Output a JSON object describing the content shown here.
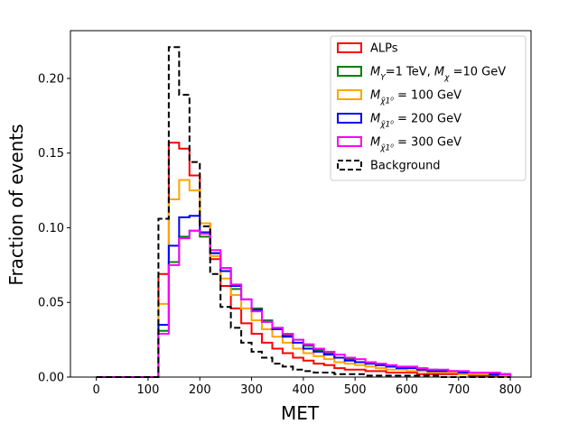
{
  "chart_data": {
    "type": "histogram-step",
    "xlabel": "MET",
    "ylabel": "Fraction of events",
    "xlim": [
      -50,
      840
    ],
    "ylim": [
      0,
      0.232
    ],
    "xticks": [
      0,
      100,
      200,
      300,
      400,
      500,
      600,
      700,
      800
    ],
    "yticks": [
      0.0,
      0.05,
      0.1,
      0.15,
      0.2
    ],
    "ytick_labels": [
      "0.00",
      "0.05",
      "0.10",
      "0.15",
      "0.20"
    ],
    "grid": false,
    "legend_position": "top-right",
    "bin_edges": [
      0,
      20,
      40,
      60,
      80,
      100,
      120,
      140,
      160,
      180,
      200,
      220,
      240,
      260,
      280,
      300,
      320,
      340,
      360,
      380,
      400,
      420,
      440,
      460,
      480,
      500,
      520,
      540,
      560,
      580,
      600,
      620,
      640,
      660,
      680,
      700,
      720,
      740,
      760,
      780,
      800
    ],
    "series": [
      {
        "name": "ALPs",
        "legend_main": "ALPs",
        "color": "#ff0000",
        "dashed": false,
        "values": [
          0,
          0,
          0,
          0,
          0,
          0,
          0.069,
          0.157,
          0.153,
          0.135,
          0.103,
          0.079,
          0.061,
          0.046,
          0.036,
          0.029,
          0.023,
          0.019,
          0.016,
          0.013,
          0.011,
          0.009,
          0.008,
          0.006,
          0.005,
          0.005,
          0.004,
          0.004,
          0.003,
          0.003,
          0.003,
          0.002,
          0.002,
          0.002,
          0.002,
          0.002,
          0.001,
          0.001,
          0.001,
          0.001
        ]
      },
      {
        "name": "M_Y=1 TeV, M_χ=10 GeV",
        "legend_main": "M",
        "legend_sub1": "Y",
        "legend_mid": "=1 TeV, M",
        "legend_sub2": "χ",
        "legend_tail": "=10 GeV",
        "color": "#008000",
        "dashed": false,
        "values": [
          0,
          0,
          0,
          0,
          0,
          0,
          0.031,
          0.077,
          0.094,
          0.098,
          0.094,
          0.083,
          0.073,
          0.059,
          0.052,
          0.046,
          0.038,
          0.033,
          0.028,
          0.025,
          0.021,
          0.018,
          0.016,
          0.013,
          0.012,
          0.01,
          0.009,
          0.008,
          0.007,
          0.006,
          0.006,
          0.005,
          0.005,
          0.004,
          0.004,
          0.003,
          0.003,
          0.003,
          0.002,
          0.002
        ]
      },
      {
        "name": "M_χ1=100 GeV",
        "legend_main": "M",
        "legend_sub1": "χ̃1⁰",
        "legend_tail": "= 100 GeV",
        "color": "#ffa500",
        "dashed": false,
        "values": [
          0,
          0,
          0,
          0,
          0,
          0,
          0.049,
          0.119,
          0.132,
          0.125,
          0.103,
          0.081,
          0.066,
          0.055,
          0.046,
          0.038,
          0.032,
          0.027,
          0.023,
          0.019,
          0.016,
          0.014,
          0.012,
          0.01,
          0.009,
          0.008,
          0.007,
          0.006,
          0.005,
          0.005,
          0.004,
          0.004,
          0.003,
          0.003,
          0.003,
          0.002,
          0.002,
          0.002,
          0.002,
          0.001
        ]
      },
      {
        "name": "M_χ1=200 GeV",
        "legend_main": "M",
        "legend_sub1": "χ̃1⁰",
        "legend_tail": "= 200 GeV",
        "color": "#0000ff",
        "dashed": false,
        "values": [
          0,
          0,
          0,
          0,
          0,
          0,
          0.035,
          0.088,
          0.107,
          0.108,
          0.097,
          0.083,
          0.071,
          0.061,
          0.052,
          0.045,
          0.037,
          0.032,
          0.027,
          0.023,
          0.019,
          0.017,
          0.015,
          0.013,
          0.011,
          0.01,
          0.009,
          0.008,
          0.007,
          0.006,
          0.006,
          0.005,
          0.004,
          0.004,
          0.004,
          0.003,
          0.003,
          0.003,
          0.002,
          0.002
        ]
      },
      {
        "name": "M_χ1=300 GeV",
        "legend_main": "M",
        "legend_sub1": "χ̃1⁰",
        "legend_tail": "= 300 GeV",
        "color": "#ff00ff",
        "dashed": false,
        "values": [
          0,
          0,
          0,
          0,
          0,
          0,
          0.029,
          0.075,
          0.093,
          0.098,
          0.096,
          0.085,
          0.073,
          0.062,
          0.052,
          0.044,
          0.037,
          0.033,
          0.029,
          0.025,
          0.022,
          0.019,
          0.017,
          0.015,
          0.013,
          0.012,
          0.01,
          0.009,
          0.008,
          0.007,
          0.007,
          0.006,
          0.005,
          0.005,
          0.004,
          0.004,
          0.003,
          0.003,
          0.003,
          0.002
        ]
      },
      {
        "name": "Background",
        "legend_main": "Background",
        "color": "#000000",
        "dashed": true,
        "values": [
          0,
          0,
          0,
          0,
          0,
          0,
          0.106,
          0.221,
          0.189,
          0.144,
          0.101,
          0.069,
          0.047,
          0.033,
          0.023,
          0.017,
          0.013,
          0.009,
          0.007,
          0.005,
          0.004,
          0.003,
          0.003,
          0.002,
          0.002,
          0.002,
          0.001,
          0.001,
          0.001,
          0.001,
          0.001,
          0.001,
          0.001,
          0.0,
          0.0,
          0.0,
          0.0,
          0.0,
          0.0,
          0.0
        ]
      }
    ]
  }
}
